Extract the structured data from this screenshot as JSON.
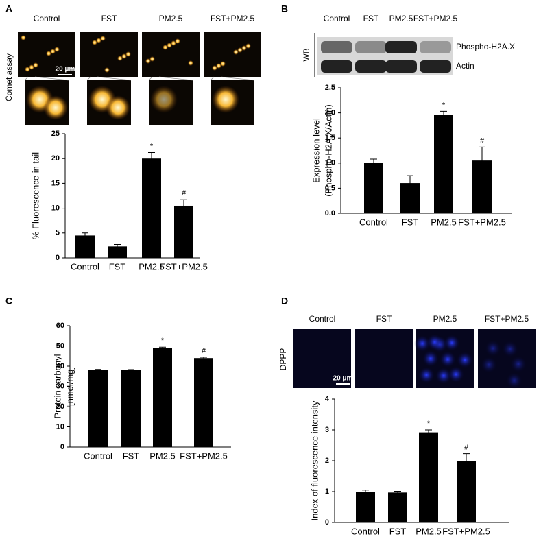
{
  "chart_data": [
    {
      "type": "bar",
      "panel": "A",
      "row_label": "Comet assay",
      "scale_bar": "20 μm",
      "image_labels": [
        "Control",
        "FST",
        "PM2.5",
        "FST+PM2.5"
      ],
      "y_label": "% Fluorescence in tail",
      "categories": [
        "Control",
        "FST",
        "PM2.5",
        "FST+PM2.5"
      ],
      "values": [
        4.5,
        2.3,
        20,
        10.5
      ],
      "errors": [
        0.5,
        0.4,
        1.2,
        1.2
      ],
      "annotations": [
        null,
        null,
        "*",
        "#"
      ],
      "color": "#000000",
      "ylim": [
        0,
        25
      ],
      "yticks": [
        0,
        5,
        10,
        15,
        20,
        25
      ]
    },
    {
      "type": "bar",
      "panel": "B",
      "row_label": "WB",
      "blot_labels": [
        "Phospho-H2A.X",
        "Actin"
      ],
      "image_labels": [
        "Control",
        "FST",
        "PM2.5",
        "FST+PM2.5"
      ],
      "y_label": [
        "Expression level",
        "(Phospho-H2A.X/Actin)"
      ],
      "categories": [
        "Control",
        "FST",
        "PM2.5",
        "FST+PM2.5"
      ],
      "values": [
        1.0,
        0.6,
        1.96,
        1.05
      ],
      "errors": [
        0.08,
        0.15,
        0.07,
        0.27
      ],
      "annotations": [
        null,
        null,
        "*",
        "#"
      ],
      "color": "#000000",
      "ylim": [
        0,
        2.5
      ],
      "yticks": [
        {
          "value": 0,
          "label": "0.0"
        },
        {
          "value": 0.5,
          "label": "0.5"
        },
        {
          "value": 1,
          "label": "1.0"
        },
        {
          "value": 1.5,
          "label": "1.5"
        },
        {
          "value": 2,
          "label": "2.0"
        },
        {
          "value": 2.5,
          "label": "2.5"
        }
      ]
    },
    {
      "type": "bar",
      "panel": "C",
      "y_label": [
        "Protein carbonyl",
        "[nmol/mg]"
      ],
      "categories": [
        "Control",
        "FST",
        "PM2.5",
        "FST+PM2.5"
      ],
      "values": [
        38,
        38,
        49,
        44
      ],
      "errors": [
        0.4,
        0.3,
        0.4,
        0.4
      ],
      "annotations": [
        null,
        null,
        "*",
        "#"
      ],
      "color": "#000000",
      "ylim": [
        0,
        60
      ],
      "yticks": [
        0,
        10,
        20,
        30,
        40,
        50,
        60
      ]
    },
    {
      "type": "bar",
      "panel": "D",
      "row_label": "DPPP",
      "scale_bar": "20 μm",
      "image_labels": [
        "Control",
        "FST",
        "PM2.5",
        "FST+PM2.5"
      ],
      "y_label": "Index of fluorescence intensity",
      "categories": [
        "Control",
        "FST",
        "PM2.5",
        "FST+PM2.5"
      ],
      "values": [
        1.0,
        0.97,
        2.92,
        1.98
      ],
      "errors": [
        0.05,
        0.04,
        0.08,
        0.25
      ],
      "annotations": [
        null,
        null,
        "*",
        "#"
      ],
      "color": "#000000",
      "ylim": [
        0,
        4
      ],
      "yticks": [
        0,
        1,
        2,
        3,
        4
      ]
    }
  ]
}
